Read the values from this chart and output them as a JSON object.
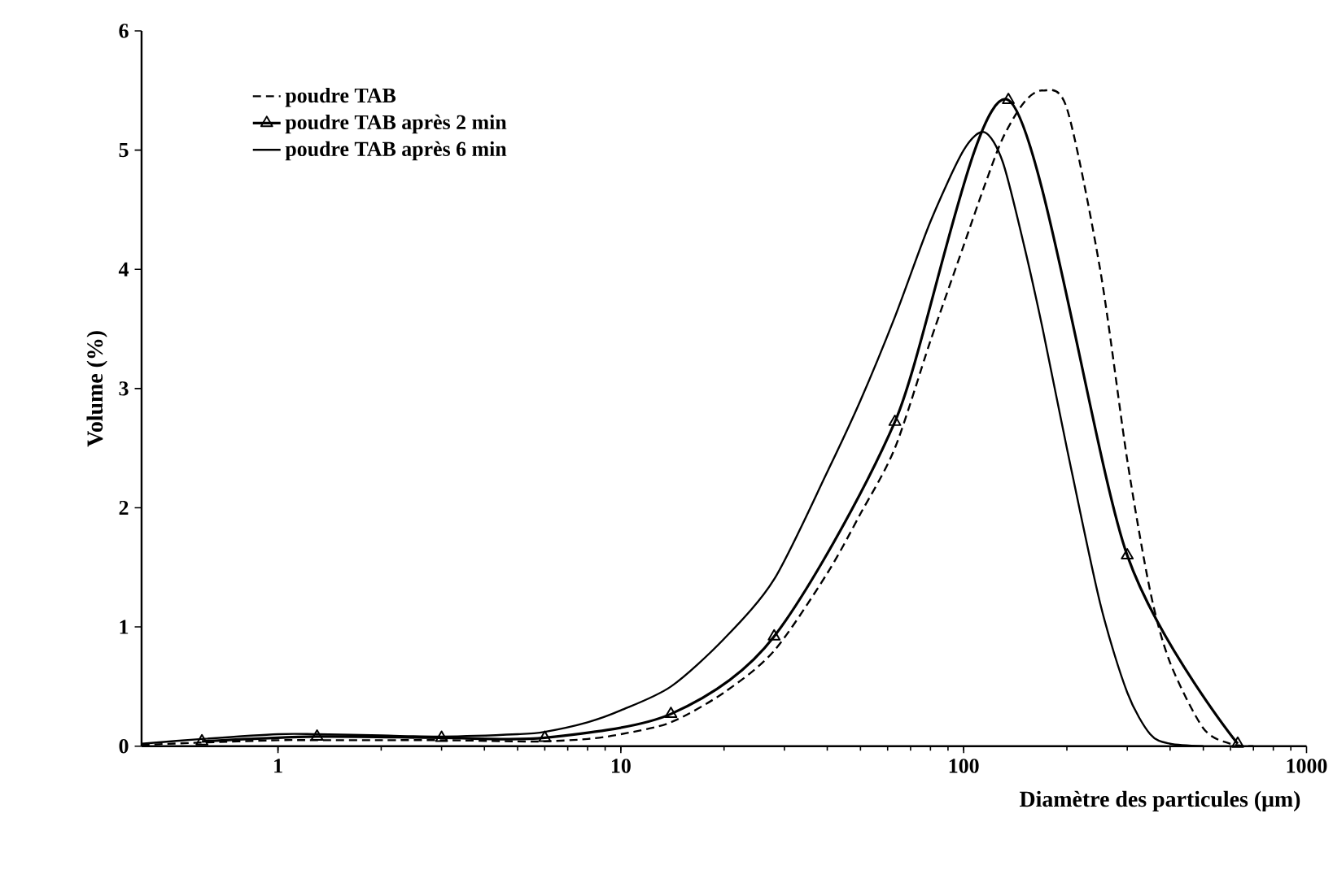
{
  "chart_data": {
    "type": "line",
    "xlabel": "Diamètre des particules (μm)",
    "ylabel": "Volume (%)",
    "log": "x",
    "xlim": [
      0.4,
      1000
    ],
    "xticks": [
      1,
      10,
      100,
      1000
    ],
    "ylim": [
      0,
      6
    ],
    "yticks": [
      0,
      1,
      2,
      3,
      4,
      5,
      6
    ],
    "legend": "top left",
    "grid": false,
    "series": [
      {
        "name": "poudre TAB",
        "color": "#000000",
        "line_style": "dashed",
        "marker": "none",
        "x": [
          0.4,
          0.6,
          1,
          1.3,
          2,
          3,
          5,
          6,
          8,
          10,
          14,
          20,
          28,
          40,
          50,
          63,
          80,
          100,
          115,
          130,
          150,
          170,
          200,
          250,
          300,
          350,
          400,
          500,
          600,
          700
        ],
        "values": [
          0.01,
          0.03,
          0.05,
          0.05,
          0.05,
          0.05,
          0.04,
          0.04,
          0.06,
          0.1,
          0.2,
          0.45,
          0.8,
          1.45,
          1.95,
          2.5,
          3.4,
          4.2,
          4.7,
          5.1,
          5.4,
          5.5,
          5.35,
          4.0,
          2.4,
          1.3,
          0.7,
          0.15,
          0.02,
          0
        ]
      },
      {
        "name": "poudre TAB après 2 min",
        "color": "#000000",
        "line_style": "solid",
        "marker": "triangle",
        "x": [
          0.6,
          1.3,
          3,
          6,
          14,
          28,
          63,
          135,
          300,
          630
        ],
        "values": [
          0.04,
          0.08,
          0.07,
          0.07,
          0.27,
          0.92,
          2.72,
          5.42,
          1.6,
          0.02
        ]
      },
      {
        "name": "poudre TAB après 6 min",
        "color": "#000000",
        "line_style": "solid",
        "marker": "none",
        "x": [
          0.4,
          0.6,
          1,
          1.3,
          2,
          3,
          5,
          6,
          8,
          10,
          14,
          20,
          28,
          40,
          50,
          63,
          80,
          100,
          115,
          130,
          150,
          170,
          200,
          250,
          300,
          350,
          400,
          500
        ],
        "values": [
          0.02,
          0.06,
          0.1,
          0.1,
          0.09,
          0.08,
          0.1,
          0.12,
          0.2,
          0.3,
          0.5,
          0.9,
          1.4,
          2.3,
          2.9,
          3.6,
          4.4,
          5.0,
          5.15,
          4.9,
          4.2,
          3.5,
          2.5,
          1.2,
          0.45,
          0.1,
          0.02,
          0
        ]
      }
    ]
  }
}
